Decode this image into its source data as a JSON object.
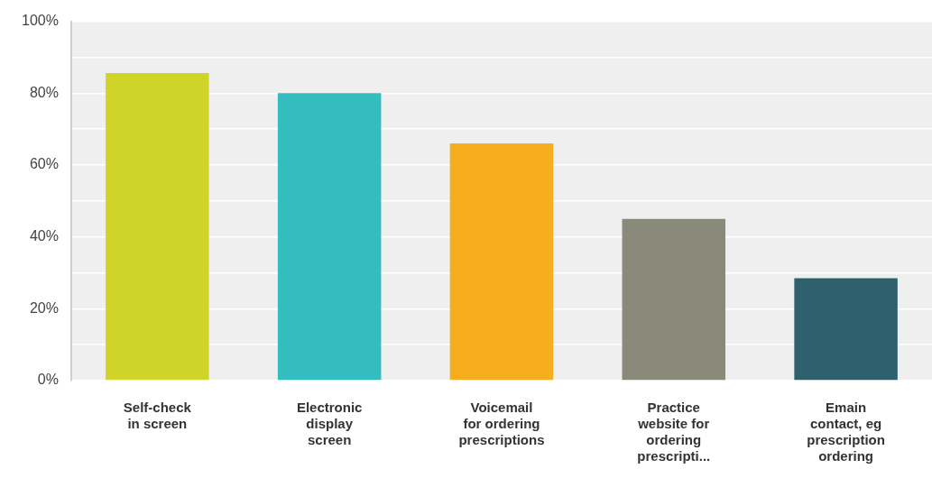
{
  "chart_data": {
    "type": "bar",
    "categories": [
      "Self-check\nin screen",
      "Electronic\ndisplay\nscreen",
      "Voicemail\nfor ordering\nprescriptions",
      "Practice\nwebsite for\nordering\nprescripti...",
      "Emain\ncontact, eg\nprescription\nordering"
    ],
    "values": [
      85.6,
      80,
      66,
      45,
      28.5
    ],
    "colors": [
      "#d0d428",
      "#33bdbe",
      "#f6ae1f",
      "#8a8a7a",
      "#2e606e"
    ],
    "ylim": [
      0,
      100
    ],
    "yticks": [
      {
        "value": 0,
        "label": "0%"
      },
      {
        "value": 10,
        "label": null
      },
      {
        "value": 20,
        "label": "20%"
      },
      {
        "value": 30,
        "label": null
      },
      {
        "value": 40,
        "label": "40%"
      },
      {
        "value": 50,
        "label": null
      },
      {
        "value": 60,
        "label": "60%"
      },
      {
        "value": 70,
        "label": null
      },
      {
        "value": 80,
        "label": "80%"
      },
      {
        "value": 90,
        "label": null
      },
      {
        "value": 100,
        "label": "100%"
      }
    ],
    "grid": "y"
  }
}
